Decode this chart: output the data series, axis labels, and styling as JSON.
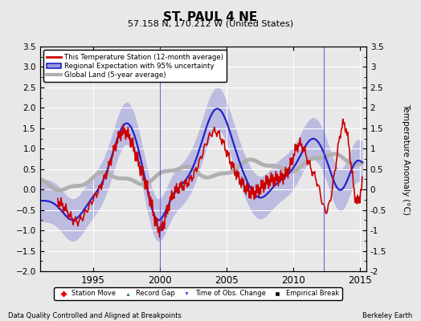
{
  "title": "ST. PAUL 4 NE",
  "subtitle": "57.158 N, 170.212 W (United States)",
  "ylabel": "Temperature Anomaly (°C)",
  "footer_left": "Data Quality Controlled and Aligned at Breakpoints",
  "footer_right": "Berkeley Earth",
  "xlim": [
    1991.0,
    2015.5
  ],
  "ylim": [
    -2.0,
    3.5
  ],
  "yticks": [
    -2,
    -1.5,
    -1,
    -0.5,
    0,
    0.5,
    1,
    1.5,
    2,
    2.5,
    3,
    3.5
  ],
  "xticks": [
    1995,
    2000,
    2005,
    2010,
    2015
  ],
  "background_color": "#e8e8e8",
  "plot_bg_color": "#e8e8e8",
  "station_color": "#cc0000",
  "regional_color": "#2222cc",
  "regional_fill_color": "#9999dd",
  "global_color": "#b0b0b0",
  "obs_change_years": [
    2000.0,
    2012.3
  ],
  "figsize": [
    5.24,
    4.0
  ],
  "dpi": 100
}
